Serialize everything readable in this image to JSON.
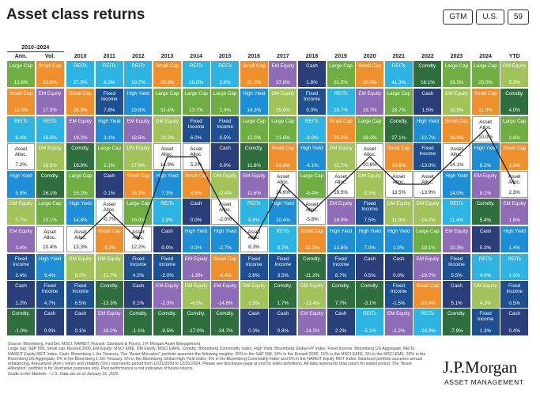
{
  "header": {
    "title": "Asset class returns",
    "badges": [
      "GTM",
      "U.S.",
      "59"
    ]
  },
  "colors": {
    "Large Cap": "#6fae43",
    "Small Cap": "#f0902c",
    "REITs": "#2db4e3",
    "EM Equity": "#8f6cb6",
    "DM Equity": "#a2c25a",
    "High Yield": "#1e8ed6",
    "Fixed Income": "#1d4f91",
    "Cash": "#2a3f7a",
    "Comdty.": "#2f6f3e",
    "Asset Alloc.": "#ffffff"
  },
  "table": {
    "span_label": "2010–2024",
    "columns": [
      {
        "header": "Ann.",
        "cells": [
          {
            "label": "Large Cap",
            "value": "13.9%"
          },
          {
            "label": "Small Cap",
            "value": "10.3%"
          },
          {
            "label": "REITs",
            "value": "8.4%"
          },
          {
            "label": "Asset Alloc.",
            "value": "7.2%"
          },
          {
            "label": "High Yield",
            "value": "5.9%"
          },
          {
            "label": "DM Equity",
            "value": "5.7%"
          },
          {
            "label": "EM Equity",
            "value": "3.4%"
          },
          {
            "label": "Fixed Income",
            "value": "2.4%"
          },
          {
            "label": "Cash",
            "value": "1.2%"
          },
          {
            "label": "Comdty.",
            "value": "-1.0%"
          }
        ]
      },
      {
        "header": "Vol.",
        "cells": [
          {
            "label": "Small Cap",
            "value": "20.6%"
          },
          {
            "label": "EM Equity",
            "value": "17.9%"
          },
          {
            "label": "REITs",
            "value": "16.8%"
          },
          {
            "label": "DM Equity",
            "value": "16.5%"
          },
          {
            "label": "Comdty.",
            "value": "16.1%"
          },
          {
            "label": "Large Cap",
            "value": "15.1%"
          },
          {
            "label": "Asset Alloc.",
            "value": "10.4%"
          },
          {
            "label": "High Yield",
            "value": "9.4%"
          },
          {
            "label": "Fixed Income",
            "value": "4.7%"
          },
          {
            "label": "Cash",
            "value": "0.9%"
          }
        ]
      },
      {
        "header": "2010",
        "cells": [
          {
            "label": "REITs",
            "value": "27.9%"
          },
          {
            "label": "Small Cap",
            "value": "26.9%"
          },
          {
            "label": "EM Equity",
            "value": "19.2%"
          },
          {
            "label": "Comdty.",
            "value": "16.8%"
          },
          {
            "label": "Large Cap",
            "value": "15.1%"
          },
          {
            "label": "High Yield",
            "value": "14.8%"
          },
          {
            "label": "Asset Alloc.",
            "value": "13.3%"
          },
          {
            "label": "DM Equity",
            "value": "8.2%"
          },
          {
            "label": "Fixed Income",
            "value": "6.5%"
          },
          {
            "label": "Cash",
            "value": "0.1%"
          }
        ]
      },
      {
        "header": "2011",
        "cells": [
          {
            "label": "REITs",
            "value": "8.3%"
          },
          {
            "label": "Fixed Income",
            "value": "7.8%"
          },
          {
            "label": "High Yield",
            "value": "3.1%"
          },
          {
            "label": "Large Cap",
            "value": "2.1%"
          },
          {
            "label": "Cash",
            "value": "0.1%"
          },
          {
            "label": "Asset Alloc.",
            "value": "-0.7%"
          },
          {
            "label": "Small Cap",
            "value": "-4.2%"
          },
          {
            "label": "DM Equity",
            "value": "-11.7%"
          },
          {
            "label": "Comdty.",
            "value": "-13.3%"
          },
          {
            "label": "EM Equity",
            "value": "-18.2%"
          }
        ]
      },
      {
        "header": "2012",
        "cells": [
          {
            "label": "REITs",
            "value": "19.7%"
          },
          {
            "label": "High Yield",
            "value": "19.6%"
          },
          {
            "label": "EM Equity",
            "value": "18.6%"
          },
          {
            "label": "DM Equity",
            "value": "17.9%"
          },
          {
            "label": "Small Cap",
            "value": "16.3%"
          },
          {
            "label": "Large Cap",
            "value": "16.0%"
          },
          {
            "label": "Asset Alloc.",
            "value": "12.2%"
          },
          {
            "label": "Fixed Income",
            "value": "4.2%"
          },
          {
            "label": "Cash",
            "value": "0.1%"
          },
          {
            "label": "Comdty.",
            "value": "-1.1%"
          }
        ]
      },
      {
        "header": "2013",
        "cells": [
          {
            "label": "Small Cap",
            "value": "38.8%"
          },
          {
            "label": "Large Cap",
            "value": "32.4%"
          },
          {
            "label": "DM Equity",
            "value": "23.3%"
          },
          {
            "label": "Asset Alloc.",
            "value": "14.9%"
          },
          {
            "label": "High Yield",
            "value": "7.3%"
          },
          {
            "label": "REITs",
            "value": "2.9%"
          },
          {
            "label": "Cash",
            "value": "0.0%"
          },
          {
            "label": "Fixed Income",
            "value": "-2.0%"
          },
          {
            "label": "EM Equity",
            "value": "-2.3%"
          },
          {
            "label": "Comdty.",
            "value": "-9.5%"
          }
        ]
      },
      {
        "header": "2014",
        "cells": [
          {
            "label": "REITs",
            "value": "28.0%"
          },
          {
            "label": "Large Cap",
            "value": "13.7%"
          },
          {
            "label": "Fixed Income",
            "value": "6.0%"
          },
          {
            "label": "Asset Alloc.",
            "value": "5.2%"
          },
          {
            "label": "Small Cap",
            "value": "4.9%"
          },
          {
            "label": "Cash",
            "value": "0.0%"
          },
          {
            "label": "High Yield",
            "value": "0.0%"
          },
          {
            "label": "EM Equity",
            "value": "-1.8%"
          },
          {
            "label": "DM Equity",
            "value": "-4.5%"
          },
          {
            "label": "Comdty.",
            "value": "-17.0%"
          }
        ]
      },
      {
        "header": "2015",
        "cells": [
          {
            "label": "REITs",
            "value": "2.8%"
          },
          {
            "label": "Large Cap",
            "value": "1.4%"
          },
          {
            "label": "Fixed Income",
            "value": "0.5%"
          },
          {
            "label": "Cash",
            "value": "0.0%"
          },
          {
            "label": "DM Equity",
            "value": "-0.4%"
          },
          {
            "label": "Asset Alloc.",
            "value": "-2.0%"
          },
          {
            "label": "High Yield",
            "value": "-2.7%"
          },
          {
            "label": "Small Cap",
            "value": "-4.4%"
          },
          {
            "label": "EM Equity",
            "value": "-14.6%"
          },
          {
            "label": "Comdty.",
            "value": "-24.7%"
          }
        ]
      },
      {
        "header": "2016",
        "cells": [
          {
            "label": "Small Cap",
            "value": "21.3%"
          },
          {
            "label": "High Yield",
            "value": "14.3%"
          },
          {
            "label": "Large Cap",
            "value": "12.0%"
          },
          {
            "label": "Comdty.",
            "value": "11.8%"
          },
          {
            "label": "EM Equity",
            "value": "11.6%"
          },
          {
            "label": "REITs",
            "value": "8.6%"
          },
          {
            "label": "Asset Alloc.",
            "value": "8.3%"
          },
          {
            "label": "Fixed Income",
            "value": "2.6%"
          },
          {
            "label": "DM Equity",
            "value": "1.5%"
          },
          {
            "label": "Cash",
            "value": "0.3%"
          }
        ]
      },
      {
        "header": "2017",
        "cells": [
          {
            "label": "EM Equity",
            "value": "37.8%"
          },
          {
            "label": "DM Equity",
            "value": "25.6%"
          },
          {
            "label": "Large Cap",
            "value": "21.8%"
          },
          {
            "label": "Small Cap",
            "value": "14.6%"
          },
          {
            "label": "Asset Alloc.",
            "value": "14.6%"
          },
          {
            "label": "High Yield",
            "value": "10.4%"
          },
          {
            "label": "REITs",
            "value": "8.7%"
          },
          {
            "label": "Fixed Income",
            "value": "3.5%"
          },
          {
            "label": "Comdty.",
            "value": "1.7%"
          },
          {
            "label": "Cash",
            "value": "0.8%"
          }
        ]
      },
      {
        "header": "2018",
        "cells": [
          {
            "label": "Cash",
            "value": "1.8%"
          },
          {
            "label": "Fixed Income",
            "value": "0.0%"
          },
          {
            "label": "REITs",
            "value": "-4.0%"
          },
          {
            "label": "High Yield",
            "value": "-4.1%"
          },
          {
            "label": "Large Cap",
            "value": "-4.4%"
          },
          {
            "label": "Asset Alloc.",
            "value": "-5.8%"
          },
          {
            "label": "Small Cap",
            "value": "-11.0%"
          },
          {
            "label": "Comdty.",
            "value": "-11.2%"
          },
          {
            "label": "DM Equity",
            "value": "-13.4%"
          },
          {
            "label": "EM Equity",
            "value": "-14.2%"
          }
        ]
      },
      {
        "header": "2019",
        "cells": [
          {
            "label": "Large Cap",
            "value": "31.5%"
          },
          {
            "label": "REITs",
            "value": "28.7%"
          },
          {
            "label": "Small Cap",
            "value": "25.5%"
          },
          {
            "label": "DM Equity",
            "value": "22.7%"
          },
          {
            "label": "Asset Alloc.",
            "value": "19.5%"
          },
          {
            "label": "EM Equity",
            "value": "18.9%"
          },
          {
            "label": "High Yield",
            "value": "12.6%"
          },
          {
            "label": "Fixed Income",
            "value": "8.7%"
          },
          {
            "label": "Comdty.",
            "value": "7.7%"
          },
          {
            "label": "Cash",
            "value": "2.2%"
          }
        ]
      },
      {
        "header": "2020",
        "cells": [
          {
            "label": "Small Cap",
            "value": "20.0%"
          },
          {
            "label": "EM Equity",
            "value": "18.7%"
          },
          {
            "label": "Large Cap",
            "value": "18.4%"
          },
          {
            "label": "Asset Alloc.",
            "value": "10.6%"
          },
          {
            "label": "DM Equity",
            "value": "8.3%"
          },
          {
            "label": "Fixed Income",
            "value": "7.5%"
          },
          {
            "label": "High Yield",
            "value": "7.0%"
          },
          {
            "label": "Cash",
            "value": "0.5%"
          },
          {
            "label": "Comdty.",
            "value": "-3.1%"
          },
          {
            "label": "REITs",
            "value": "-5.1%"
          }
        ]
      },
      {
        "header": "2021",
        "cells": [
          {
            "label": "REITs",
            "value": "41.3%"
          },
          {
            "label": "Large Cap",
            "value": "28.7%"
          },
          {
            "label": "Comdty.",
            "value": "27.1%"
          },
          {
            "label": "Small Cap",
            "value": "14.8%"
          },
          {
            "label": "Asset Alloc.",
            "value": "13.5%"
          },
          {
            "label": "DM Equity",
            "value": "11.8%"
          },
          {
            "label": "High Yield",
            "value": "1.0%"
          },
          {
            "label": "Cash",
            "value": "0.0%"
          },
          {
            "label": "Fixed Income",
            "value": "-1.5%"
          },
          {
            "label": "EM Equity",
            "value": "-2.2%"
          }
        ]
      },
      {
        "header": "2022",
        "cells": [
          {
            "label": "Comdty.",
            "value": "16.1%"
          },
          {
            "label": "Cash",
            "value": "1.5%"
          },
          {
            "label": "High Yield",
            "value": "-12.7%"
          },
          {
            "label": "Fixed Income",
            "value": "-13.0%"
          },
          {
            "label": "Asset Alloc.",
            "value": "-13.9%"
          },
          {
            "label": "DM Equity",
            "value": "-14.0%"
          },
          {
            "label": "Large Cap",
            "value": "-18.1%"
          },
          {
            "label": "EM Equity",
            "value": "-19.7%"
          },
          {
            "label": "Small Cap",
            "value": "-20.4%"
          },
          {
            "label": "REITs",
            "value": "-24.9%"
          }
        ]
      },
      {
        "header": "2023",
        "cells": [
          {
            "label": "Large Cap",
            "value": "26.3%"
          },
          {
            "label": "DM Equity",
            "value": "18.9%"
          },
          {
            "label": "Small Cap",
            "value": "16.9%"
          },
          {
            "label": "Asset Alloc.",
            "value": "14.1%"
          },
          {
            "label": "High Yield",
            "value": "14.0%"
          },
          {
            "label": "REITs",
            "value": "11.4%"
          },
          {
            "label": "EM Equity",
            "value": "10.3%"
          },
          {
            "label": "Fixed Income",
            "value": "5.5%"
          },
          {
            "label": "Cash",
            "value": "5.1%"
          },
          {
            "label": "Comdty.",
            "value": "-7.9%"
          }
        ]
      },
      {
        "header": "2024",
        "cells": [
          {
            "label": "Large Cap",
            "value": "25.0%"
          },
          {
            "label": "Small Cap",
            "value": "11.5%"
          },
          {
            "label": "Asset Alloc.",
            "value": "10.0%"
          },
          {
            "label": "High Yield",
            "value": "8.2%"
          },
          {
            "label": "EM Equity",
            "value": "8.1%"
          },
          {
            "label": "Comdty.",
            "value": "5.4%"
          },
          {
            "label": "Cash",
            "value": "5.3%"
          },
          {
            "label": "REITs",
            "value": "4.9%"
          },
          {
            "label": "DM Equity",
            "value": "4.3%"
          },
          {
            "label": "Fixed Income",
            "value": "1.3%"
          }
        ]
      },
      {
        "header": "YTD",
        "cells": [
          {
            "label": "DM Equity",
            "value": "5.3%"
          },
          {
            "label": "Comdty.",
            "value": "4.0%"
          },
          {
            "label": "Large Cap",
            "value": "2.8%"
          },
          {
            "label": "Small Cap",
            "value": "2.6%"
          },
          {
            "label": "Asset Alloc.",
            "value": "2.3%"
          },
          {
            "label": "EM Equity",
            "value": "1.8%"
          },
          {
            "label": "High Yield",
            "value": "1.4%"
          },
          {
            "label": "REITs",
            "value": "1.0%"
          },
          {
            "label": "Fixed Income",
            "value": "0.5%"
          },
          {
            "label": "Cash",
            "value": "0.4%"
          }
        ]
      }
    ]
  },
  "footer": {
    "notes": [
      "Source: Bloomberg, FactSet, MSCI, NAREIT, Russell, Standard & Poor's, J.P. Morgan Asset Management.",
      "Large cap: S&P 500, Small cap: Russell 2000, EM Equity: MSCI EME, DM Equity: MSCI EAFE, Comdty: Bloomberg Commodity Index, High Yield: Bloomberg Global HY Index, Fixed Income: Bloomberg US Aggregate, REITs: NAREIT Equity REIT Index, Cash: Bloomberg 1-3m Treasury. The \"Asset Allocation\" portfolio assumes the following weights: 25% in the S&P 500, 10% in the Russell 2000, 15% in the MSCI EAFE, 5% in the MSCI EME, 25% in the Bloomberg US Aggregate, 5% in the Bloomberg 1-3m Treasury, 5% in the Bloomberg Global High Yield Index, 5% in the Bloomberg Commodity Index and 5% in the NAREIT Equity REIT Index. Balanced portfolio assumes annual rebalancing. Annualized (Ann.) return and volatility (Vol.) represents period from 12/31/2009 to 12/31/2024. Please see disclosure page at end for index definitions. All data represents total return for stated period. The \"Asset Allocation\" portfolio is for illustrative purposes only. Past performance is not indicative of future returns.",
      "Guide to the Markets – U.S. Data are as of January 31, 2025."
    ],
    "logo": "J.P.Morgan",
    "logo_sub": "ASSET MANAGEMENT"
  }
}
